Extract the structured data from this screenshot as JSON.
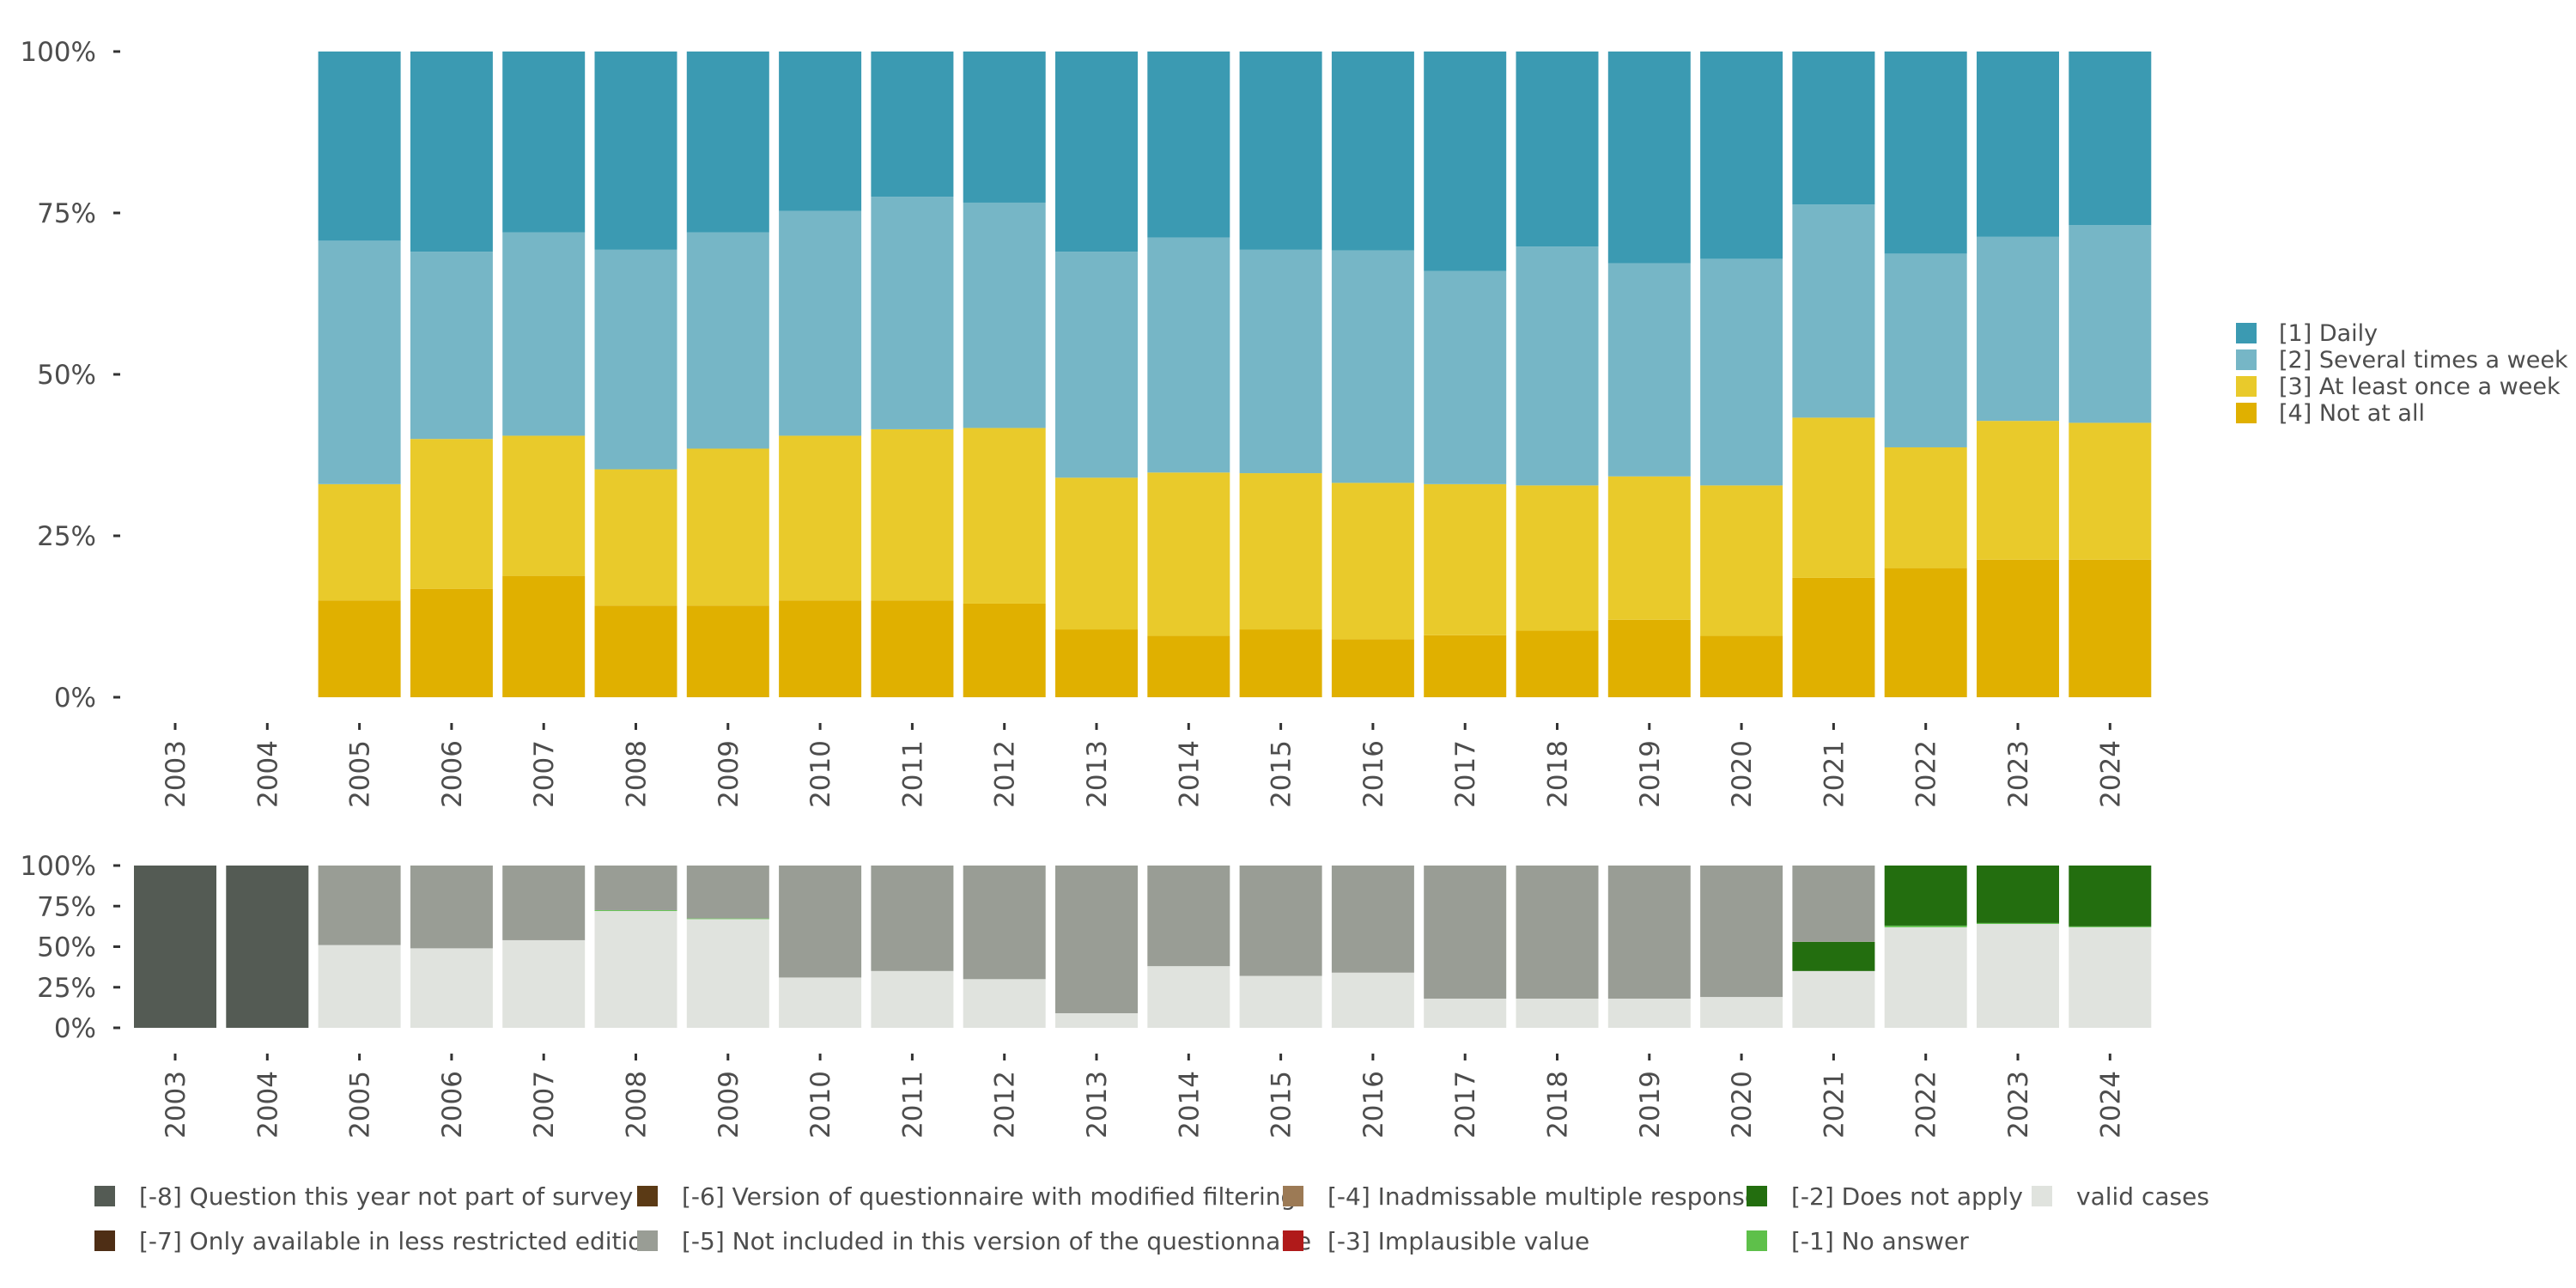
{
  "chart_data": [
    {
      "type": "bar",
      "stacked": true,
      "categories": [
        "2003",
        "2004",
        "2005",
        "2006",
        "2007",
        "2008",
        "2009",
        "2010",
        "2011",
        "2012",
        "2013",
        "2014",
        "2015",
        "2016",
        "2017",
        "2018",
        "2019",
        "2020",
        "2021",
        "2022",
        "2023",
        "2024"
      ],
      "ylim": [
        0,
        100
      ],
      "y_ticks": [
        "0%",
        "25%",
        "50%",
        "75%",
        "100%"
      ],
      "legend_position": "right",
      "series": [
        {
          "name": "[4] Not at all",
          "color": "#e0b000",
          "values": [
            0,
            0,
            15,
            16.8,
            18.8,
            14.2,
            14.2,
            15,
            15,
            14.5,
            10.5,
            9.5,
            10.5,
            9,
            9.6,
            10.3,
            12,
            9.5,
            18.5,
            20,
            21.3,
            21.3
          ]
        },
        {
          "name": "[3] At least once a week",
          "color": "#e9ca2b",
          "values": [
            0,
            0,
            18,
            23.2,
            21.7,
            21.1,
            24.3,
            25.5,
            26.5,
            27.2,
            23.5,
            25.3,
            24.2,
            24.2,
            23.4,
            22.5,
            22.2,
            23.3,
            24.8,
            18.7,
            21.5,
            21.2
          ]
        },
        {
          "name": "[2] Several times a week",
          "color": "#76b6c6",
          "values": [
            0,
            0,
            37.7,
            29,
            31.5,
            34,
            33.5,
            34.8,
            36,
            34.9,
            35,
            36.4,
            34.6,
            36,
            33,
            37,
            33,
            35.1,
            33,
            30,
            28.5,
            30.6
          ]
        },
        {
          "name": "[1] Daily",
          "color": "#3b9ab2",
          "values": [
            0,
            0,
            29.3,
            31,
            28,
            30.7,
            28,
            24.7,
            22.5,
            23.4,
            31,
            28.8,
            30.7,
            30.8,
            34,
            30.2,
            32.8,
            32.1,
            23.7,
            31.3,
            28.7,
            26.9
          ]
        }
      ],
      "legend_order": [
        "[1] Daily",
        "[2] Several times a week",
        "[3] At least once a week",
        "[4] Not at all"
      ]
    },
    {
      "type": "bar",
      "stacked": true,
      "categories": [
        "2003",
        "2004",
        "2005",
        "2006",
        "2007",
        "2008",
        "2009",
        "2010",
        "2011",
        "2012",
        "2013",
        "2014",
        "2015",
        "2016",
        "2017",
        "2018",
        "2019",
        "2020",
        "2021",
        "2022",
        "2023",
        "2024"
      ],
      "ylim": [
        0,
        100
      ],
      "y_ticks": [
        "0%",
        "25%",
        "50%",
        "75%",
        "100%"
      ],
      "legend_position": "bottom",
      "series": [
        {
          "name": "valid cases",
          "color": "#e0e3de",
          "values": [
            0,
            0,
            51,
            49,
            54,
            72,
            67,
            31,
            35,
            30,
            9,
            38,
            32,
            34,
            18,
            18,
            18,
            19,
            35,
            62,
            64,
            62
          ]
        },
        {
          "name": "[-1] No answer",
          "color": "#5ec04a",
          "values": [
            0,
            0,
            0,
            0,
            0,
            0.5,
            0.4,
            0,
            0,
            0,
            0,
            0,
            0,
            0,
            0,
            0,
            0,
            0,
            0,
            1,
            0.6,
            0.5
          ]
        },
        {
          "name": "[-2] Does not apply",
          "color": "#236e0f",
          "values": [
            0,
            0,
            0,
            0,
            0,
            0,
            0,
            0,
            0,
            0,
            0,
            0,
            0,
            0,
            0,
            0,
            0,
            0,
            18,
            37,
            35.4,
            37.5
          ]
        },
        {
          "name": "[-5] Not included in this version of the questionnaire",
          "color": "#999d95",
          "values": [
            0,
            0,
            49,
            51,
            46,
            27.5,
            32.6,
            69,
            65,
            70,
            91,
            62,
            68,
            66,
            82,
            82,
            82,
            81,
            47,
            0,
            0,
            0
          ]
        },
        {
          "name": "[-8] Question this year not part of survey",
          "color": "#545b54",
          "values": [
            100,
            100,
            0,
            0,
            0,
            0,
            0,
            0,
            0,
            0,
            0,
            0,
            0,
            0,
            0,
            0,
            0,
            0,
            0,
            0,
            0,
            0
          ]
        }
      ],
      "legend_entries": [
        {
          "label": "[-8] Question this year not part of survey",
          "color": "#545b54"
        },
        {
          "label": "[-6] Version of questionnaire with modified filtering",
          "color": "#5b3a15"
        },
        {
          "label": "[-4] Inadmissable multiple response",
          "color": "#9c7a55"
        },
        {
          "label": "[-2] Does not apply",
          "color": "#236e0f"
        },
        {
          "label": "valid cases",
          "color": "#e0e3de"
        },
        {
          "label": "[-7] Only available in less restricted edition",
          "color": "#4e2e15"
        },
        {
          "label": "[-5] Not included in this version of the questionnaire",
          "color": "#999d95"
        },
        {
          "label": "[-3] Implausible value",
          "color": "#b01a1a"
        },
        {
          "label": "[-1] No answer",
          "color": "#5ec04a"
        }
      ]
    }
  ]
}
